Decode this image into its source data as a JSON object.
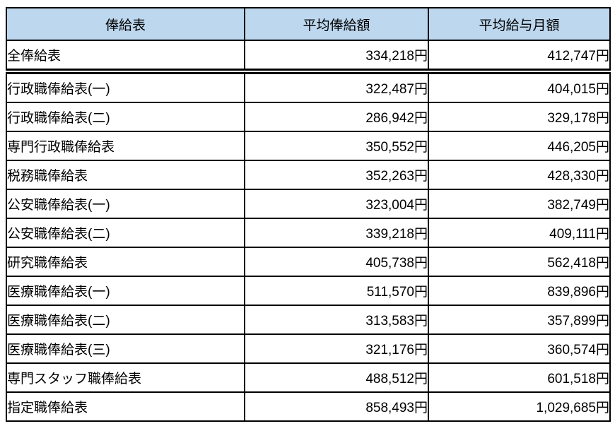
{
  "chart_data": {
    "type": "table",
    "title": "",
    "columns": [
      "俸給表",
      "平均俸給額",
      "平均給与月額"
    ],
    "rows": [
      [
        "全俸給表",
        "334,218円",
        "412,747円"
      ],
      [
        "行政職俸給表(一)",
        "322,487円",
        "404,015円"
      ],
      [
        "行政職俸給表(二)",
        "286,942円",
        "329,178円"
      ],
      [
        "専門行政職俸給表",
        "350,552円",
        "446,205円"
      ],
      [
        "税務職俸給表",
        "352,263円",
        "428,330円"
      ],
      [
        "公安職俸給表(一)",
        "323,004円",
        "382,749円"
      ],
      [
        "公安職俸給表(二)",
        "339,218円",
        "409,111円"
      ],
      [
        "研究職俸給表",
        "405,738円",
        "562,418円"
      ],
      [
        "医療職俸給表(一)",
        "511,570円",
        "839,896円"
      ],
      [
        "医療職俸給表(二)",
        "313,583円",
        "357,899円"
      ],
      [
        "医療職俸給表(三)",
        "321,176円",
        "360,574円"
      ],
      [
        "専門スタッフ職俸給表",
        "488,512円",
        "601,518円"
      ],
      [
        "指定職俸給表",
        "858,493円",
        "1,029,685円"
      ]
    ],
    "layout": {
      "header_background": "#BDD7EE",
      "border_color": "#000000",
      "text_color": "#000000",
      "value_unit": "円"
    }
  }
}
